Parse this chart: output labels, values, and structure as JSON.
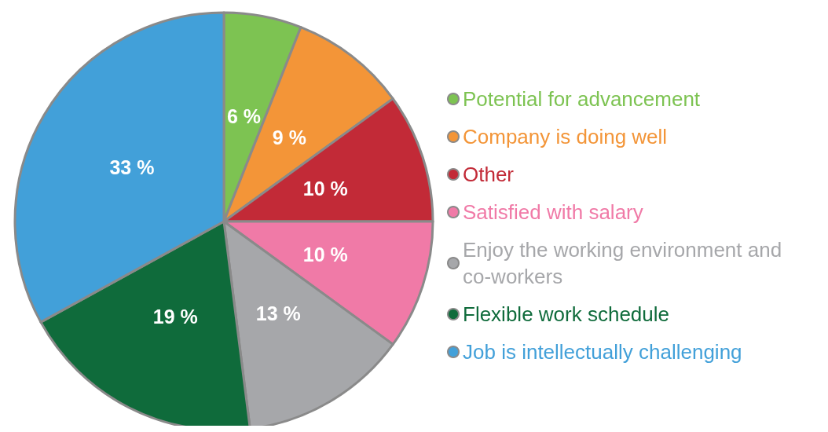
{
  "chart_data": {
    "type": "pie",
    "categories": [
      "Potential for advancement",
      "Company is doing well",
      "Other",
      "Satisfied with salary",
      "Enjoy the working environment and co-workers",
      "Flexible work schedule",
      "Job is intellectually challenging"
    ],
    "values": [
      6,
      9,
      10,
      10,
      13,
      19,
      33
    ],
    "value_labels": [
      "6 %",
      "9 %",
      "10 %",
      "10 %",
      "13 %",
      "19 %",
      "33 %"
    ],
    "colors": [
      "#7dc352",
      "#f39538",
      "#c22a37",
      "#f07aa7",
      "#a6a7aa",
      "#0f6b3b",
      "#42a0d9"
    ],
    "legend": "right"
  }
}
